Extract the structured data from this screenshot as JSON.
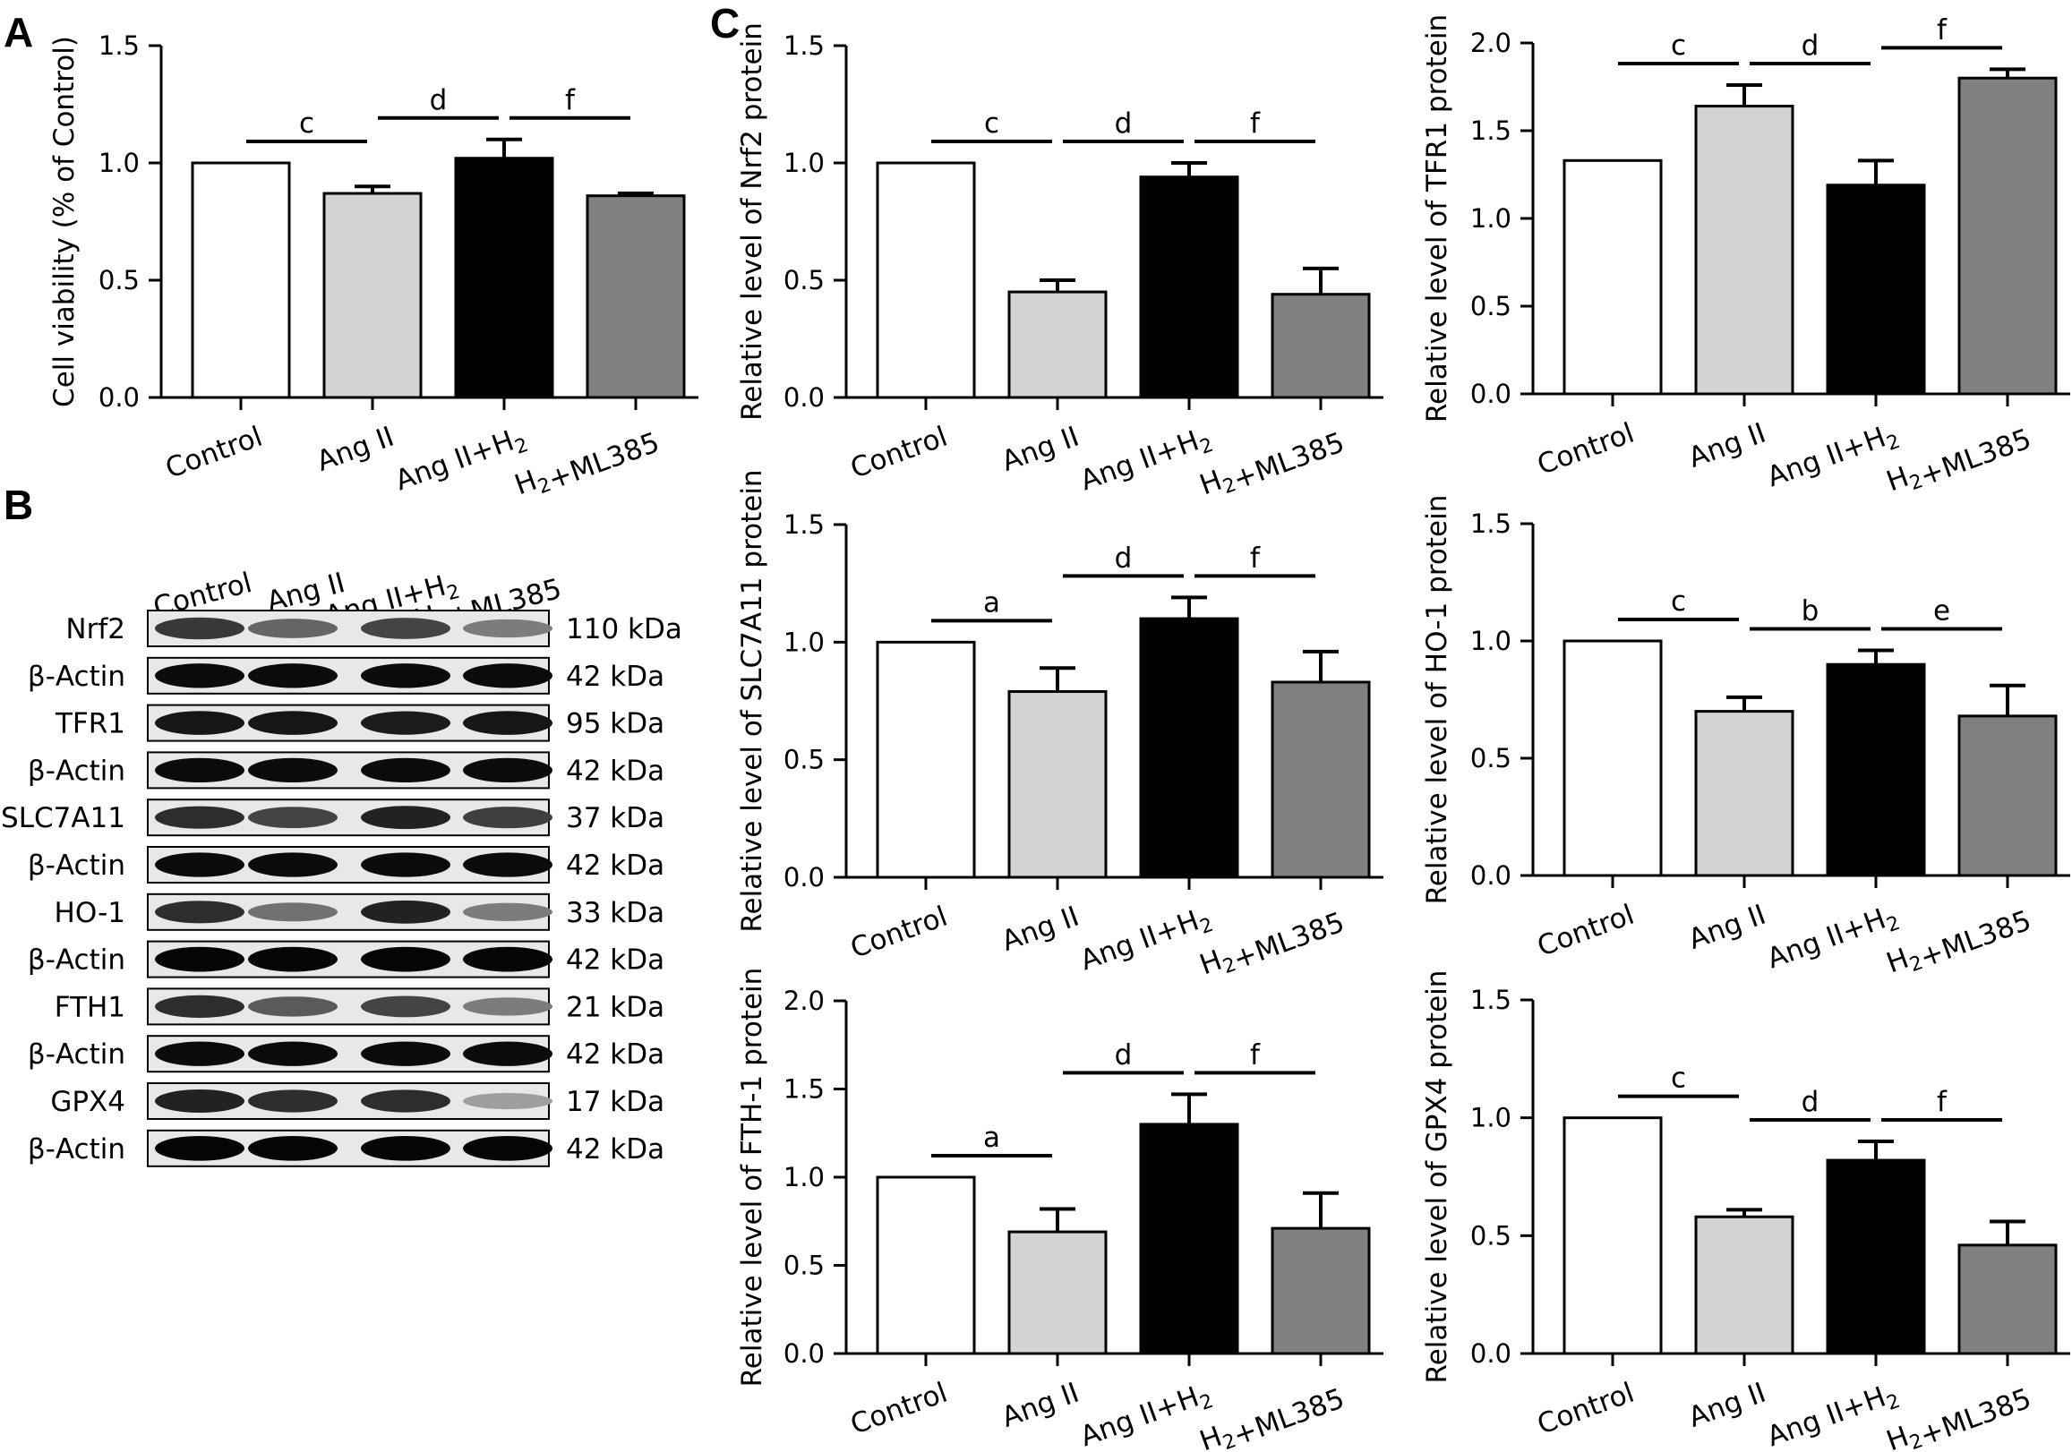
{
  "panels": {
    "A": "A",
    "B": "B",
    "C": "C"
  },
  "colors": {
    "control": "#ffffff",
    "ang_ii": "#d3d3d3",
    "ang_ii_h2": "#000000",
    "h2_ml385": "#808080"
  },
  "chart_data": [
    {
      "id": "A",
      "type": "bar",
      "ylabel": "Cell viability (% of Control)",
      "categories": [
        "Control",
        "Ang II",
        "Ang II+H2",
        "H2+ML385"
      ],
      "values": [
        1.0,
        0.87,
        1.02,
        0.86
      ],
      "errors": [
        0.0,
        0.03,
        0.08,
        0.01
      ],
      "ylim": [
        0,
        1.5
      ],
      "yticks": [
        "0.0",
        "0.5",
        "1.0",
        "1.5"
      ],
      "significance": [
        "c",
        "d",
        "f"
      ]
    },
    {
      "id": "C1",
      "type": "bar",
      "ylabel": "Relative level of Nrf2 protein",
      "categories": [
        "Control",
        "Ang II",
        "Ang II+H2",
        "H2+ML385"
      ],
      "values": [
        1.0,
        0.45,
        0.94,
        0.44
      ],
      "errors": [
        0.0,
        0.05,
        0.06,
        0.11
      ],
      "ylim": [
        0,
        1.5
      ],
      "yticks": [
        "0.0",
        "0.5",
        "1.0",
        "1.5"
      ],
      "significance": [
        "c",
        "d",
        "f"
      ]
    },
    {
      "id": "C2",
      "type": "bar",
      "ylabel": "Relative level of TFR1 protein",
      "categories": [
        "Control",
        "Ang II",
        "Ang II+H2",
        "H2+ML385"
      ],
      "values": [
        1.33,
        1.64,
        1.19,
        1.8
      ],
      "errors": [
        0.0,
        0.12,
        0.14,
        0.05
      ],
      "ylim": [
        0,
        2.0
      ],
      "yticks": [
        "0.0",
        "0.5",
        "1.0",
        "1.5",
        "2.0"
      ],
      "significance": [
        "c",
        "d",
        "f"
      ]
    },
    {
      "id": "C3",
      "type": "bar",
      "ylabel": "Relative level of SLC7A11 protein",
      "categories": [
        "Control",
        "Ang II",
        "Ang II+H2",
        "H2+ML385"
      ],
      "values": [
        1.0,
        0.79,
        1.1,
        0.83
      ],
      "errors": [
        0.0,
        0.1,
        0.09,
        0.13
      ],
      "ylim": [
        0,
        1.5
      ],
      "yticks": [
        "0.0",
        "0.5",
        "1.0",
        "1.5"
      ],
      "significance": [
        "a",
        "d",
        "f"
      ]
    },
    {
      "id": "C4",
      "type": "bar",
      "ylabel": "Relative level of HO-1 protein",
      "categories": [
        "Control",
        "Ang II",
        "Ang II+H2",
        "H2+ML385"
      ],
      "values": [
        1.0,
        0.7,
        0.9,
        0.68
      ],
      "errors": [
        0.0,
        0.06,
        0.06,
        0.13
      ],
      "ylim": [
        0,
        1.5
      ],
      "yticks": [
        "0.0",
        "0.5",
        "1.0",
        "1.5"
      ],
      "significance": [
        "c",
        "b",
        "e"
      ]
    },
    {
      "id": "C5",
      "type": "bar",
      "ylabel": "Relative level of FTH-1 protein",
      "categories": [
        "Control",
        "Ang II",
        "Ang II+H2",
        "H2+ML385"
      ],
      "values": [
        1.0,
        0.69,
        1.3,
        0.71
      ],
      "errors": [
        0.0,
        0.13,
        0.17,
        0.2
      ],
      "ylim": [
        0,
        2.0
      ],
      "yticks": [
        "0.0",
        "0.5",
        "1.0",
        "1.5",
        "2.0"
      ],
      "significance": [
        "a",
        "d",
        "f"
      ]
    },
    {
      "id": "C6",
      "type": "bar",
      "ylabel": "Relative level of GPX4 protein",
      "categories": [
        "Control",
        "Ang II",
        "Ang II+H2",
        "H2+ML385"
      ],
      "values": [
        1.0,
        0.58,
        0.82,
        0.46
      ],
      "errors": [
        0.0,
        0.03,
        0.08,
        0.1
      ],
      "ylim": [
        0,
        1.5
      ],
      "yticks": [
        "0.0",
        "0.5",
        "1.0",
        "1.5"
      ],
      "significance": [
        "c",
        "d",
        "f"
      ]
    }
  ],
  "blot": {
    "lane_labels": [
      "Control",
      "Ang II",
      "Ang II+H2",
      "H2+ML385"
    ],
    "rows": [
      {
        "protein": "Nrf2",
        "kda": "110 kDa",
        "intensity": [
          0.75,
          0.55,
          0.7,
          0.45
        ]
      },
      {
        "protein": "β-Actin",
        "kda": "42 kDa",
        "intensity": [
          0.95,
          0.95,
          0.95,
          0.95
        ]
      },
      {
        "protein": "TFR1",
        "kda": "95 kDa",
        "intensity": [
          0.9,
          0.9,
          0.88,
          0.9
        ]
      },
      {
        "protein": "β-Actin",
        "kda": "42 kDa",
        "intensity": [
          0.95,
          0.95,
          0.95,
          0.95
        ]
      },
      {
        "protein": "SLC7A11",
        "kda": "37 kDa",
        "intensity": [
          0.8,
          0.7,
          0.85,
          0.72
        ]
      },
      {
        "protein": "β-Actin",
        "kda": "42 kDa",
        "intensity": [
          0.95,
          0.95,
          0.95,
          0.95
        ]
      },
      {
        "protein": "HO-1",
        "kda": "33 kDa",
        "intensity": [
          0.8,
          0.5,
          0.85,
          0.45
        ]
      },
      {
        "protein": "β-Actin",
        "kda": "42 kDa",
        "intensity": [
          0.98,
          0.98,
          0.98,
          0.98
        ]
      },
      {
        "protein": "FTH1",
        "kda": "21 kDa",
        "intensity": [
          0.8,
          0.6,
          0.7,
          0.45
        ]
      },
      {
        "protein": "β-Actin",
        "kda": "42 kDa",
        "intensity": [
          0.95,
          0.95,
          0.95,
          0.95
        ]
      },
      {
        "protein": "GPX4",
        "kda": "17 kDa",
        "intensity": [
          0.85,
          0.8,
          0.8,
          0.3
        ]
      },
      {
        "protein": "β-Actin",
        "kda": "42 kDa",
        "intensity": [
          0.98,
          0.98,
          0.98,
          0.98
        ]
      }
    ]
  }
}
